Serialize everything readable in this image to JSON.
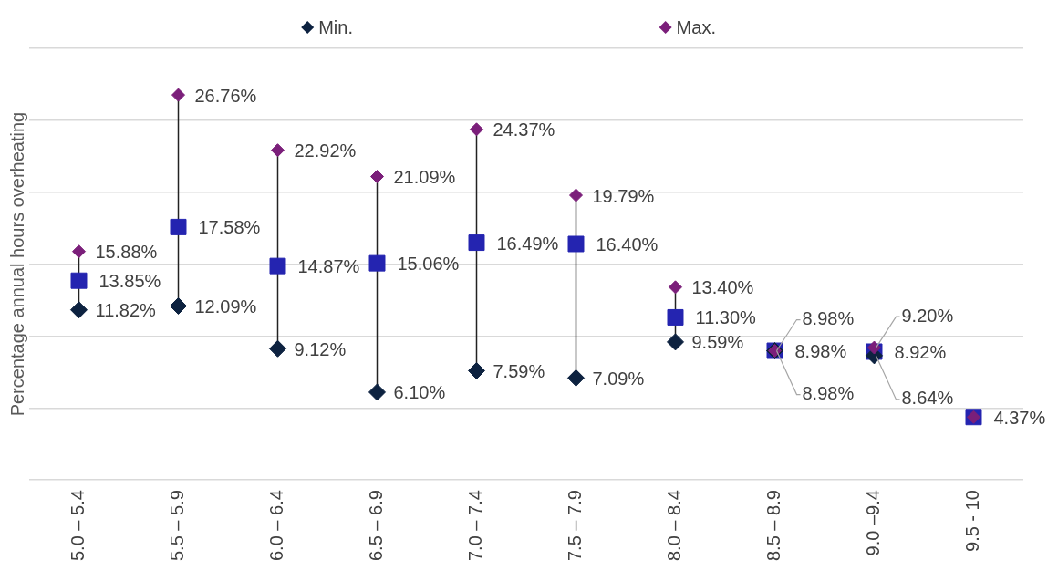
{
  "chart_data": {
    "type": "scatter",
    "ylabel": "Percentage annual hours overheating",
    "categories": [
      "5.0 – 5.4",
      "5.5 – 5.9",
      "6.0 – 6.4",
      "6.5 – 6.9",
      "7.0 – 7.4",
      "7.5 – 7.9",
      "8.0 – 8.4",
      "8.5 – 8.9",
      "9.0 –9.4",
      "9.5 - 10"
    ],
    "series": [
      {
        "name": "Min.",
        "color": "#0d2240",
        "marker": "diamond",
        "values": [
          11.82,
          12.09,
          9.12,
          6.1,
          7.59,
          7.09,
          9.59,
          8.98,
          8.64,
          null
        ],
        "value_labels": [
          "11.82%",
          "12.09%",
          "9.12%",
          "6.10%",
          "7.59%",
          "7.09%",
          "9.59%",
          "8.98%",
          "8.64%",
          null
        ]
      },
      {
        "name": "Max.",
        "color": "#7b1f7a",
        "marker": "diamond",
        "values": [
          15.88,
          26.76,
          22.92,
          21.09,
          24.37,
          19.79,
          13.4,
          8.98,
          9.2,
          4.37
        ],
        "value_labels": [
          "15.88%",
          "26.76%",
          "22.92%",
          "21.09%",
          "24.37%",
          "19.79%",
          "13.40%",
          "8.98%",
          "9.20%",
          null
        ]
      },
      {
        "color": "#2424b0",
        "marker": "square",
        "values": [
          13.85,
          17.58,
          14.87,
          15.06,
          16.49,
          16.4,
          11.3,
          8.98,
          8.92,
          4.37
        ],
        "value_labels": [
          "13.85%",
          "17.58%",
          "14.87%",
          "15.06%",
          "16.49%",
          "16.40%",
          "11.30%",
          "8.98%",
          "8.92%",
          "4.37%"
        ]
      }
    ],
    "ylim": [
      0,
      30
    ],
    "yticks": [
      {
        "value": 0,
        "label": null
      },
      {
        "value": 5,
        "label": null
      },
      {
        "value": 10,
        "label": null
      },
      {
        "value": 15,
        "label": null
      },
      {
        "value": 20,
        "label": null
      },
      {
        "value": 25,
        "label": null
      },
      {
        "value": 30,
        "label": null
      }
    ],
    "tick_labels": "x",
    "grid": "y",
    "legend": "top"
  }
}
